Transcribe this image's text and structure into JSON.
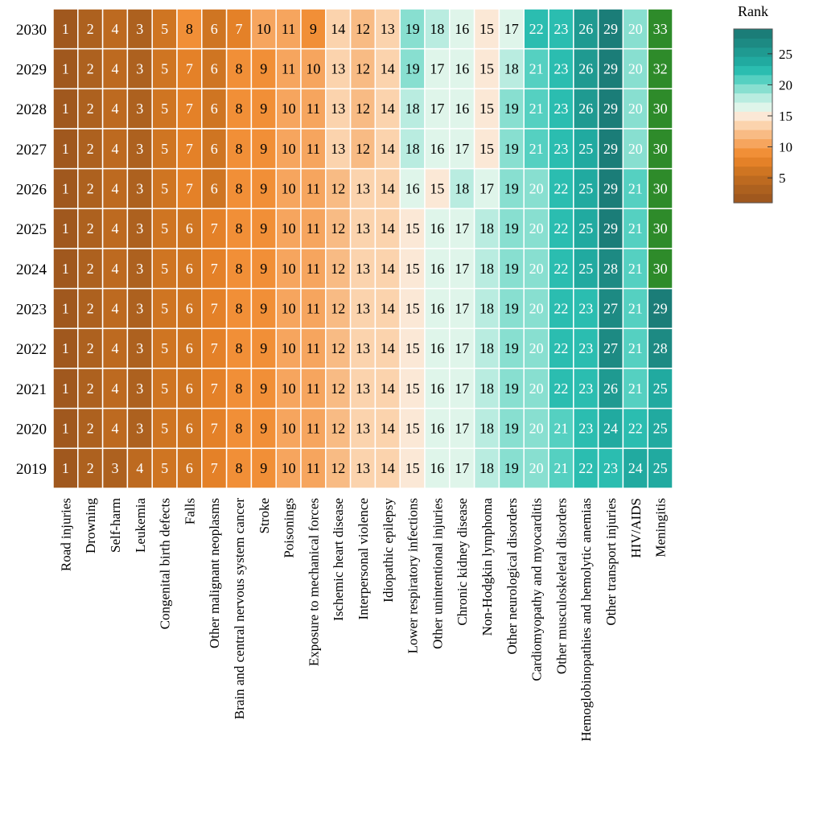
{
  "chart_data": {
    "type": "heatmap",
    "title": "",
    "xlabel": "",
    "ylabel": "",
    "categories": [
      "Road injuries",
      "Drowning",
      "Self-harm",
      "Leukemia",
      "Congenital birth defects",
      "Falls",
      "Other malignant neoplasms",
      "Brain and central nervous system cancer",
      "Stroke",
      "Poisonings",
      "Exposure to mechanical forces",
      "Ischemic heart disease",
      "Interpersonal violence",
      "Idiopathic epilepsy",
      "Lower respiratory infections",
      "Other unintentional injuries",
      "Chronic kidney disease",
      "Non-Hodgkin lymphoma",
      "Other neurological disorders",
      "Cardiomyopathy and myocarditis",
      "Other musculoskeletal disorders",
      "Hemoglobinopathies and hemolytic anemias",
      "Other transport injuries",
      "HIV/AIDS",
      "Meningitis"
    ],
    "years": [
      "2030",
      "2029",
      "2028",
      "2027",
      "2026",
      "2025",
      "2024",
      "2023",
      "2022",
      "2021",
      "2020",
      "2019"
    ],
    "values": [
      [
        1,
        2,
        4,
        3,
        5,
        8,
        6,
        7,
        10,
        11,
        9,
        14,
        12,
        13,
        19,
        18,
        16,
        15,
        17,
        22,
        23,
        26,
        29,
        20,
        33
      ],
      [
        1,
        2,
        4,
        3,
        5,
        7,
        6,
        8,
        9,
        11,
        10,
        13,
        12,
        14,
        19,
        17,
        16,
        15,
        18,
        21,
        23,
        26,
        29,
        20,
        32
      ],
      [
        1,
        2,
        4,
        3,
        5,
        7,
        6,
        8,
        9,
        10,
        11,
        13,
        12,
        14,
        18,
        17,
        16,
        15,
        19,
        21,
        23,
        26,
        29,
        20,
        30
      ],
      [
        1,
        2,
        4,
        3,
        5,
        7,
        6,
        8,
        9,
        10,
        11,
        13,
        12,
        14,
        18,
        16,
        17,
        15,
        19,
        21,
        23,
        25,
        29,
        20,
        30
      ],
      [
        1,
        2,
        4,
        3,
        5,
        7,
        6,
        8,
        9,
        10,
        11,
        12,
        13,
        14,
        16,
        15,
        18,
        17,
        19,
        20,
        22,
        25,
        29,
        21,
        30
      ],
      [
        1,
        2,
        4,
        3,
        5,
        6,
        7,
        8,
        9,
        10,
        11,
        12,
        13,
        14,
        15,
        16,
        17,
        18,
        19,
        20,
        22,
        25,
        29,
        21,
        30
      ],
      [
        1,
        2,
        4,
        3,
        5,
        6,
        7,
        8,
        9,
        10,
        11,
        12,
        13,
        14,
        15,
        16,
        17,
        18,
        19,
        20,
        22,
        25,
        28,
        21,
        30
      ],
      [
        1,
        2,
        4,
        3,
        5,
        6,
        7,
        8,
        9,
        10,
        11,
        12,
        13,
        14,
        15,
        16,
        17,
        18,
        19,
        20,
        22,
        23,
        27,
        21,
        29
      ],
      [
        1,
        2,
        4,
        3,
        5,
        6,
        7,
        8,
        9,
        10,
        11,
        12,
        13,
        14,
        15,
        16,
        17,
        18,
        19,
        20,
        22,
        23,
        27,
        21,
        28
      ],
      [
        1,
        2,
        4,
        3,
        5,
        6,
        7,
        8,
        9,
        10,
        11,
        12,
        13,
        14,
        15,
        16,
        17,
        18,
        19,
        20,
        22,
        23,
        26,
        21,
        25
      ],
      [
        1,
        2,
        4,
        3,
        5,
        6,
        7,
        8,
        9,
        10,
        11,
        12,
        13,
        14,
        15,
        16,
        17,
        18,
        19,
        20,
        21,
        23,
        24,
        22,
        25
      ],
      [
        1,
        2,
        3,
        4,
        5,
        6,
        7,
        8,
        9,
        10,
        11,
        12,
        13,
        14,
        15,
        16,
        17,
        18,
        19,
        20,
        21,
        22,
        23,
        24,
        25
      ]
    ],
    "legend": {
      "title": "Rank",
      "ticks": [
        5,
        10,
        15,
        20,
        25
      ],
      "range": [
        1,
        29
      ]
    },
    "colors": {
      "scale": [
        "#a0581e",
        "#ad611f",
        "#bd6a20",
        "#cf7522",
        "#e48128",
        "#f18f37",
        "#f6a55e",
        "#f8bb84",
        "#fbd3ad",
        "#fbe8d6",
        "#dff5ea",
        "#b9ece0",
        "#88dfd0",
        "#55d0c1",
        "#2bbdb0",
        "#21aaa0",
        "#1f9a91",
        "#1d8a83",
        "#1b7d78"
      ],
      "overflow": "#2e8b2a",
      "grid": "#ffffff",
      "text_dark": "#000000",
      "text_light": "#ffffff"
    }
  }
}
